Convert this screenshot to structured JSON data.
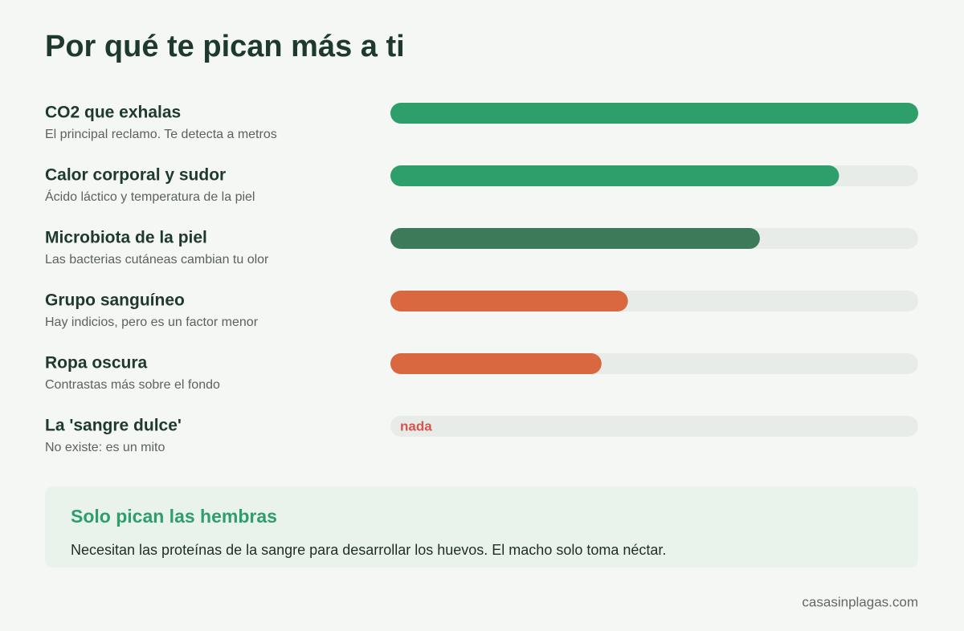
{
  "chart_data": {
    "type": "bar",
    "orientation": "horizontal",
    "title": "Por qué te pican más a ti",
    "categories": [
      "CO2 que exhalas",
      "Calor corporal y sudor",
      "Microbiota de la piel",
      "Grupo sanguíneo",
      "Ropa oscura",
      "La 'sangre dulce'"
    ],
    "descriptions": [
      "El principal reclamo. Te detecta a metros",
      "Ácido láctico y temperatura de la piel",
      "Las bacterias cutáneas cambian tu olor",
      "Hay indicios, pero es un factor menor",
      "Contrastas más sobre el fondo",
      "No existe: es un mito"
    ],
    "values": [
      100,
      85,
      70,
      45,
      40,
      0
    ],
    "value_labels": [
      null,
      null,
      null,
      null,
      null,
      "nada"
    ],
    "colors": [
      "#2e9e6b",
      "#2e9e6b",
      "#3d7a5a",
      "#d9673f",
      "#d9673f",
      "#d9534f"
    ],
    "xlim": [
      0,
      100
    ]
  },
  "note": {
    "title": "Solo pican las hembras",
    "text": "Necesitan las proteínas de la sangre para desarrollar los huevos. El macho solo toma néctar."
  },
  "source": "casasinplagas.com"
}
